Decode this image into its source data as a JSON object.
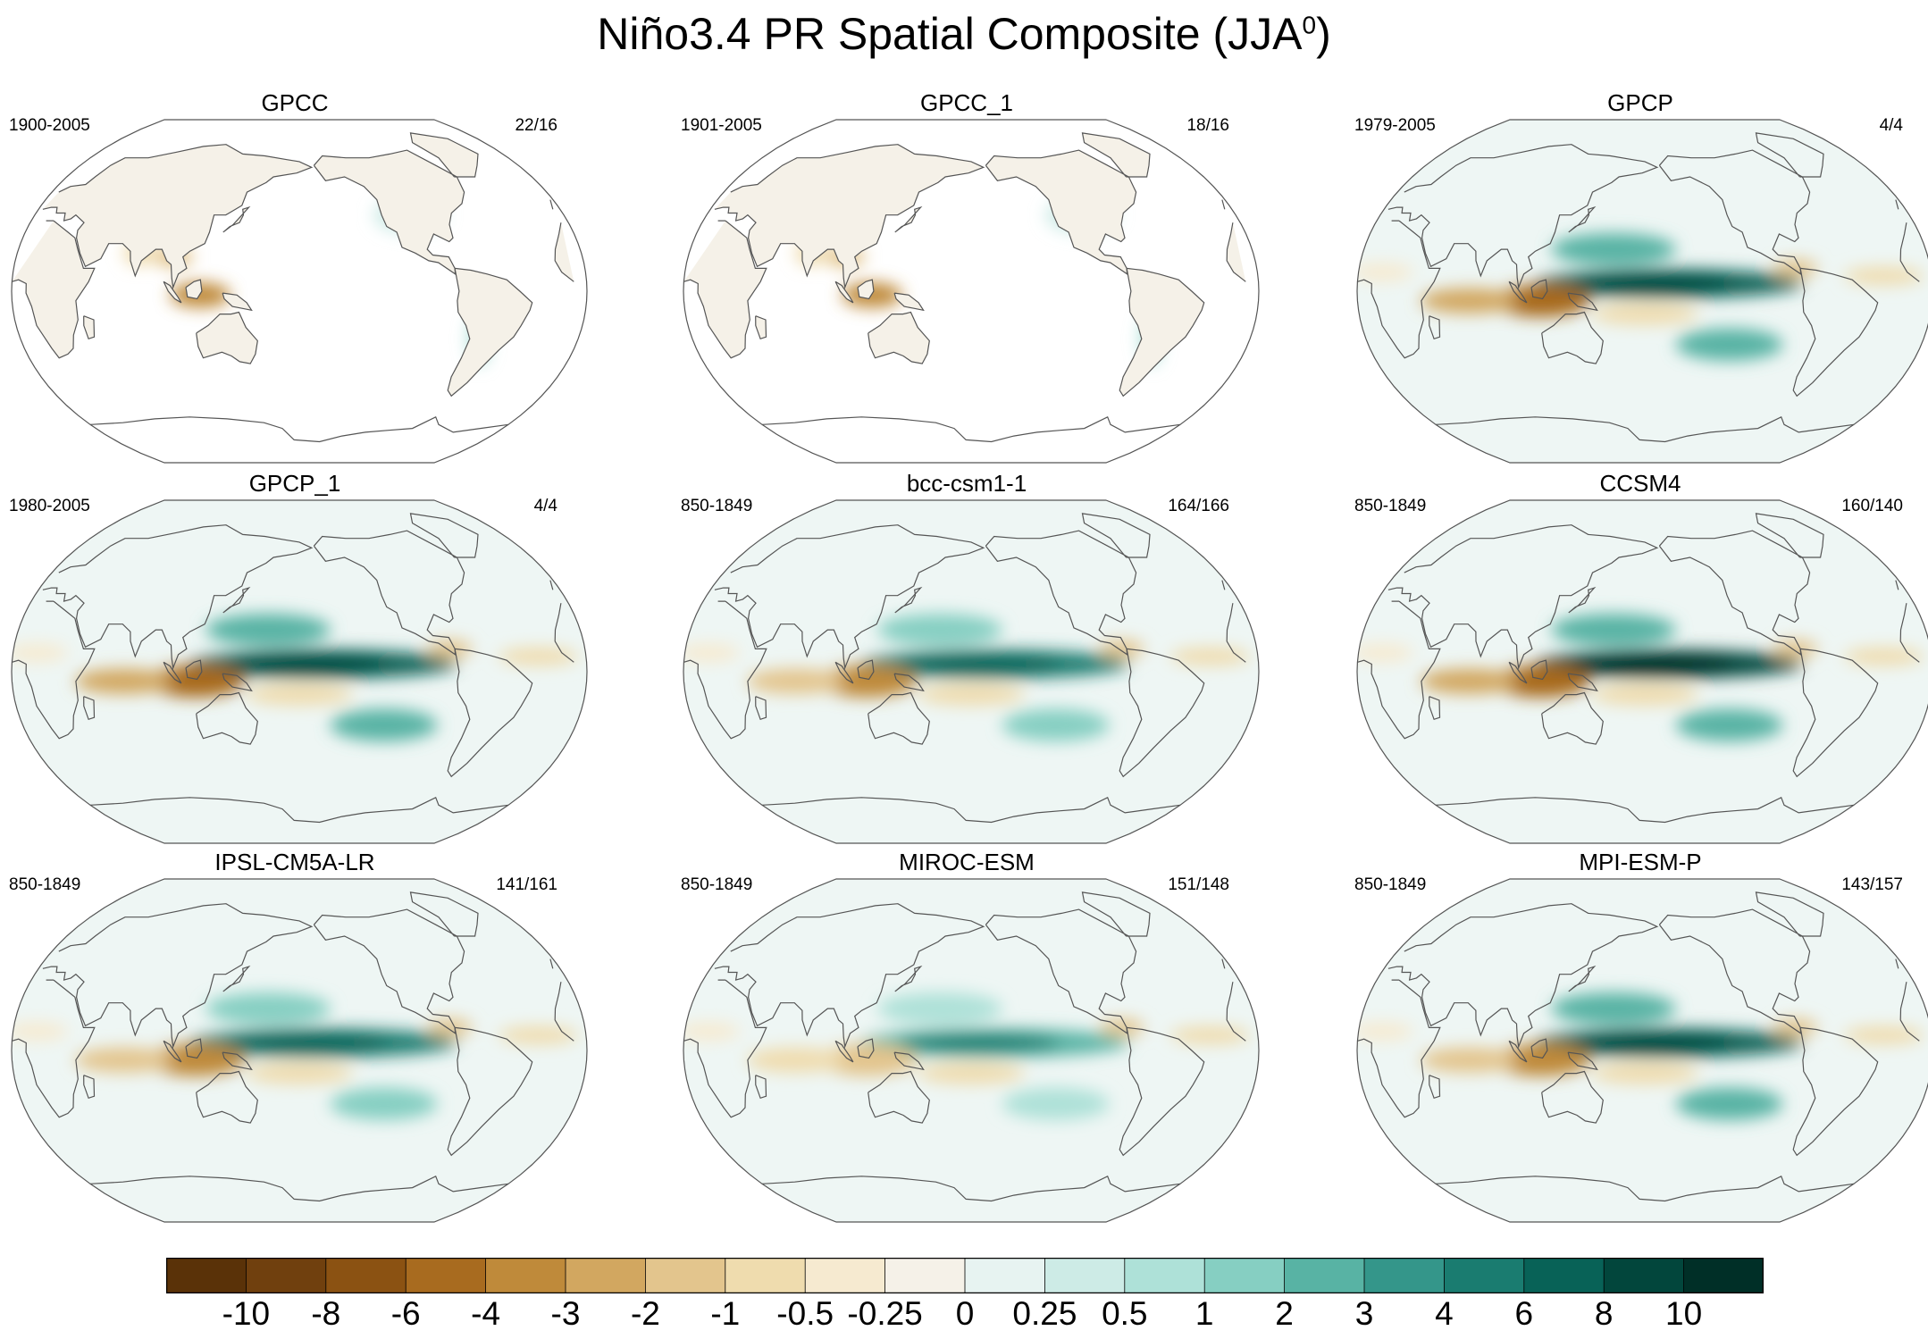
{
  "title": "Niño3.4 PR Spatial Composite (JJA",
  "title_superscript": "0",
  "title_close": ")",
  "chart_data": {
    "type": "map-panels",
    "projection": "Robinson (Pacific-centered)",
    "panels": [
      {
        "name": "GPCC",
        "period": "1900-2005",
        "count": "22/16",
        "coverage": "land",
        "equatorial_pacific": 0,
        "maritime_continent": -4
      },
      {
        "name": "GPCC_1",
        "period": "1901-2005",
        "count": "18/16",
        "coverage": "land",
        "equatorial_pacific": 0,
        "maritime_continent": -4
      },
      {
        "name": "GPCP",
        "period": "1979-2005",
        "count": "4/4",
        "coverage": "global",
        "equatorial_pacific": 6,
        "maritime_continent": -6
      },
      {
        "name": "GPCP_1",
        "period": "1980-2005",
        "count": "4/4",
        "coverage": "global",
        "equatorial_pacific": 6,
        "maritime_continent": -6
      },
      {
        "name": "bcc-csm1-1",
        "period": "850-1849",
        "count": "164/166",
        "coverage": "global",
        "equatorial_pacific": 4,
        "maritime_continent": -4
      },
      {
        "name": "CCSM4",
        "period": "850-1849",
        "count": "160/140",
        "coverage": "global",
        "equatorial_pacific": 8,
        "maritime_continent": -6
      },
      {
        "name": "IPSL-CM5A-LR",
        "period": "850-1849",
        "count": "141/161",
        "coverage": "global",
        "equatorial_pacific": 4,
        "maritime_continent": -4
      },
      {
        "name": "MIROC-ESM",
        "period": "850-1849",
        "count": "151/148",
        "coverage": "global",
        "equatorial_pacific": 2,
        "maritime_continent": -2
      },
      {
        "name": "MPI-ESM-P",
        "period": "850-1849",
        "count": "143/157",
        "coverage": "global",
        "equatorial_pacific": 6,
        "maritime_continent": -4
      }
    ],
    "colorbar": {
      "levels": [
        "-10",
        "-8",
        "-6",
        "-4",
        "-3",
        "-2",
        "-1",
        "-0.5",
        "-0.25",
        "0",
        "0.25",
        "0.5",
        "1",
        "2",
        "3",
        "4",
        "6",
        "8",
        "10"
      ],
      "colors": [
        "#5a3208",
        "#70400e",
        "#8b5212",
        "#a86b1f",
        "#bf8a3a",
        "#d2a760",
        "#e3c58d",
        "#efdcae",
        "#f6ead0",
        "#f5f1e8",
        "#e7f3f1",
        "#cdebe6",
        "#aee1d8",
        "#86cfc2",
        "#58b3a4",
        "#34968a",
        "#1a7c70",
        "#086257",
        "#02463c",
        "#002f27"
      ]
    }
  }
}
